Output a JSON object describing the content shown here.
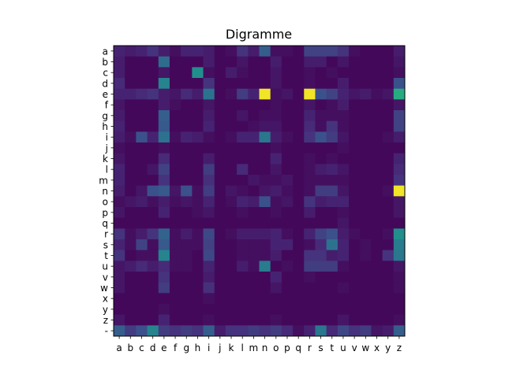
{
  "chart_data": {
    "type": "heatmap",
    "title": "Digramme",
    "xlabel": "",
    "ylabel": "",
    "x_labels": [
      "a",
      "b",
      "c",
      "d",
      "e",
      "f",
      "g",
      "h",
      "i",
      "j",
      "k",
      "l",
      "m",
      "n",
      "o",
      "p",
      "q",
      "r",
      "s",
      "t",
      "u",
      "v",
      "w",
      "x",
      "y",
      "z"
    ],
    "y_labels": [
      "a",
      "b",
      "c",
      "d",
      "e",
      "f",
      "g",
      "h",
      "i",
      "j",
      "k",
      "l",
      "m",
      "n",
      "o",
      "p",
      "q",
      "r",
      "s",
      "t",
      "u",
      "v",
      "w",
      "x",
      "y",
      "z",
      "-"
    ],
    "colormap": "viridis",
    "value_range": [
      0,
      1
    ],
    "values": [
      [
        0.1,
        0.08,
        0.1,
        0.15,
        0.08,
        0.04,
        0.1,
        0.1,
        0.08,
        0.02,
        0.04,
        0.15,
        0.08,
        0.3,
        0.04,
        0.04,
        0.02,
        0.2,
        0.2,
        0.2,
        0.15,
        0.04,
        0.02,
        0.02,
        0.02,
        0.08
      ],
      [
        0.08,
        0.02,
        0.02,
        0.02,
        0.35,
        0.02,
        0.02,
        0.02,
        0.08,
        0.02,
        0.02,
        0.06,
        0.02,
        0.02,
        0.08,
        0.02,
        0.02,
        0.08,
        0.08,
        0.02,
        0.06,
        0.02,
        0.02,
        0.02,
        0.02,
        0.06
      ],
      [
        0.08,
        0.02,
        0.02,
        0.02,
        0.06,
        0.02,
        0.02,
        0.5,
        0.04,
        0.02,
        0.08,
        0.04,
        0.02,
        0.02,
        0.06,
        0.02,
        0.02,
        0.04,
        0.02,
        0.04,
        0.02,
        0.02,
        0.02,
        0.02,
        0.02,
        0.04
      ],
      [
        0.12,
        0.02,
        0.02,
        0.02,
        0.45,
        0.02,
        0.02,
        0.02,
        0.15,
        0.02,
        0.02,
        0.02,
        0.02,
        0.02,
        0.06,
        0.02,
        0.02,
        0.04,
        0.02,
        0.02,
        0.08,
        0.02,
        0.02,
        0.02,
        0.02,
        0.25
      ],
      [
        0.1,
        0.1,
        0.12,
        0.15,
        0.08,
        0.06,
        0.12,
        0.08,
        0.38,
        0.02,
        0.04,
        0.18,
        0.1,
        0.98,
        0.04,
        0.06,
        0.02,
        0.98,
        0.25,
        0.2,
        0.1,
        0.06,
        0.08,
        0.04,
        0.06,
        0.62
      ],
      [
        0.06,
        0.02,
        0.02,
        0.02,
        0.08,
        0.04,
        0.02,
        0.02,
        0.06,
        0.02,
        0.02,
        0.02,
        0.02,
        0.02,
        0.04,
        0.02,
        0.02,
        0.06,
        0.02,
        0.04,
        0.08,
        0.02,
        0.02,
        0.02,
        0.02,
        0.06
      ],
      [
        0.08,
        0.02,
        0.02,
        0.02,
        0.3,
        0.02,
        0.02,
        0.02,
        0.08,
        0.02,
        0.02,
        0.06,
        0.02,
        0.04,
        0.04,
        0.02,
        0.02,
        0.1,
        0.04,
        0.04,
        0.04,
        0.02,
        0.02,
        0.02,
        0.02,
        0.2
      ],
      [
        0.1,
        0.02,
        0.02,
        0.02,
        0.28,
        0.02,
        0.02,
        0.02,
        0.1,
        0.02,
        0.02,
        0.02,
        0.04,
        0.06,
        0.06,
        0.02,
        0.02,
        0.12,
        0.04,
        0.15,
        0.04,
        0.02,
        0.02,
        0.02,
        0.02,
        0.2
      ],
      [
        0.08,
        0.04,
        0.25,
        0.1,
        0.38,
        0.04,
        0.1,
        0.08,
        0.04,
        0.02,
        0.04,
        0.1,
        0.1,
        0.4,
        0.08,
        0.04,
        0.02,
        0.15,
        0.25,
        0.18,
        0.06,
        0.02,
        0.02,
        0.02,
        0.04,
        0.08
      ],
      [
        0.04,
        0.02,
        0.02,
        0.02,
        0.04,
        0.02,
        0.02,
        0.02,
        0.02,
        0.02,
        0.02,
        0.02,
        0.02,
        0.02,
        0.04,
        0.02,
        0.02,
        0.02,
        0.02,
        0.02,
        0.04,
        0.02,
        0.02,
        0.02,
        0.02,
        0.02
      ],
      [
        0.06,
        0.02,
        0.02,
        0.02,
        0.12,
        0.02,
        0.02,
        0.02,
        0.08,
        0.02,
        0.02,
        0.02,
        0.02,
        0.02,
        0.1,
        0.02,
        0.02,
        0.04,
        0.02,
        0.04,
        0.02,
        0.02,
        0.02,
        0.02,
        0.02,
        0.1
      ],
      [
        0.1,
        0.02,
        0.02,
        0.06,
        0.2,
        0.02,
        0.02,
        0.02,
        0.18,
        0.02,
        0.02,
        0.12,
        0.02,
        0.02,
        0.06,
        0.02,
        0.02,
        0.04,
        0.08,
        0.1,
        0.06,
        0.02,
        0.02,
        0.02,
        0.02,
        0.12
      ],
      [
        0.1,
        0.02,
        0.02,
        0.02,
        0.15,
        0.02,
        0.02,
        0.02,
        0.14,
        0.02,
        0.02,
        0.02,
        0.06,
        0.04,
        0.04,
        0.06,
        0.02,
        0.04,
        0.04,
        0.04,
        0.04,
        0.02,
        0.02,
        0.02,
        0.02,
        0.15
      ],
      [
        0.08,
        0.02,
        0.06,
        0.25,
        0.28,
        0.06,
        0.25,
        0.04,
        0.18,
        0.02,
        0.06,
        0.04,
        0.02,
        0.06,
        0.08,
        0.04,
        0.02,
        0.04,
        0.18,
        0.18,
        0.06,
        0.02,
        0.02,
        0.02,
        0.04,
        0.98
      ],
      [
        0.04,
        0.06,
        0.08,
        0.04,
        0.08,
        0.04,
        0.06,
        0.04,
        0.1,
        0.02,
        0.04,
        0.1,
        0.08,
        0.25,
        0.04,
        0.06,
        0.02,
        0.15,
        0.08,
        0.1,
        0.1,
        0.02,
        0.02,
        0.02,
        0.02,
        0.06
      ],
      [
        0.06,
        0.02,
        0.02,
        0.02,
        0.1,
        0.02,
        0.02,
        0.04,
        0.06,
        0.02,
        0.02,
        0.04,
        0.02,
        0.02,
        0.04,
        0.02,
        0.02,
        0.08,
        0.02,
        0.02,
        0.04,
        0.02,
        0.02,
        0.02,
        0.02,
        0.06
      ],
      [
        0.02,
        0.02,
        0.02,
        0.02,
        0.02,
        0.02,
        0.02,
        0.02,
        0.02,
        0.02,
        0.02,
        0.02,
        0.02,
        0.02,
        0.02,
        0.02,
        0.02,
        0.02,
        0.02,
        0.02,
        0.06,
        0.02,
        0.02,
        0.02,
        0.02,
        0.02
      ],
      [
        0.15,
        0.04,
        0.08,
        0.15,
        0.32,
        0.04,
        0.08,
        0.04,
        0.22,
        0.02,
        0.04,
        0.08,
        0.08,
        0.08,
        0.1,
        0.04,
        0.02,
        0.1,
        0.2,
        0.25,
        0.08,
        0.04,
        0.02,
        0.02,
        0.04,
        0.5
      ],
      [
        0.1,
        0.04,
        0.2,
        0.04,
        0.28,
        0.04,
        0.04,
        0.04,
        0.2,
        0.02,
        0.02,
        0.04,
        0.04,
        0.04,
        0.1,
        0.1,
        0.02,
        0.04,
        0.12,
        0.38,
        0.1,
        0.02,
        0.04,
        0.02,
        0.02,
        0.42
      ],
      [
        0.15,
        0.02,
        0.04,
        0.04,
        0.45,
        0.04,
        0.04,
        0.02,
        0.22,
        0.02,
        0.02,
        0.04,
        0.04,
        0.04,
        0.08,
        0.02,
        0.02,
        0.15,
        0.15,
        0.08,
        0.1,
        0.02,
        0.04,
        0.02,
        0.15,
        0.4
      ],
      [
        0.06,
        0.08,
        0.12,
        0.08,
        0.12,
        0.04,
        0.04,
        0.02,
        0.1,
        0.02,
        0.02,
        0.08,
        0.04,
        0.42,
        0.02,
        0.04,
        0.02,
        0.18,
        0.18,
        0.18,
        0.04,
        0.02,
        0.02,
        0.02,
        0.02,
        0.06
      ],
      [
        0.06,
        0.02,
        0.02,
        0.02,
        0.15,
        0.02,
        0.02,
        0.02,
        0.08,
        0.02,
        0.02,
        0.02,
        0.02,
        0.02,
        0.1,
        0.02,
        0.02,
        0.04,
        0.02,
        0.02,
        0.02,
        0.02,
        0.02,
        0.02,
        0.02,
        0.04
      ],
      [
        0.06,
        0.02,
        0.02,
        0.02,
        0.18,
        0.02,
        0.02,
        0.02,
        0.14,
        0.02,
        0.02,
        0.02,
        0.02,
        0.02,
        0.06,
        0.02,
        0.02,
        0.02,
        0.02,
        0.02,
        0.04,
        0.02,
        0.02,
        0.02,
        0.02,
        0.04
      ],
      [
        0.02,
        0.02,
        0.02,
        0.02,
        0.02,
        0.02,
        0.02,
        0.02,
        0.04,
        0.02,
        0.02,
        0.02,
        0.02,
        0.02,
        0.02,
        0.02,
        0.02,
        0.02,
        0.02,
        0.02,
        0.02,
        0.02,
        0.02,
        0.02,
        0.02,
        0.02
      ],
      [
        0.02,
        0.02,
        0.02,
        0.02,
        0.04,
        0.02,
        0.02,
        0.02,
        0.02,
        0.02,
        0.02,
        0.02,
        0.02,
        0.02,
        0.02,
        0.02,
        0.02,
        0.02,
        0.02,
        0.02,
        0.02,
        0.02,
        0.02,
        0.02,
        0.02,
        0.02
      ],
      [
        0.06,
        0.02,
        0.02,
        0.02,
        0.1,
        0.02,
        0.02,
        0.02,
        0.04,
        0.02,
        0.02,
        0.02,
        0.02,
        0.02,
        0.04,
        0.02,
        0.02,
        0.02,
        0.02,
        0.02,
        0.06,
        0.02,
        0.02,
        0.02,
        0.02,
        0.04
      ],
      [
        0.3,
        0.18,
        0.25,
        0.45,
        0.18,
        0.15,
        0.18,
        0.15,
        0.3,
        0.08,
        0.15,
        0.15,
        0.18,
        0.15,
        0.18,
        0.12,
        0.04,
        0.1,
        0.4,
        0.12,
        0.22,
        0.15,
        0.18,
        0.06,
        0.08,
        0.3
      ]
    ]
  }
}
